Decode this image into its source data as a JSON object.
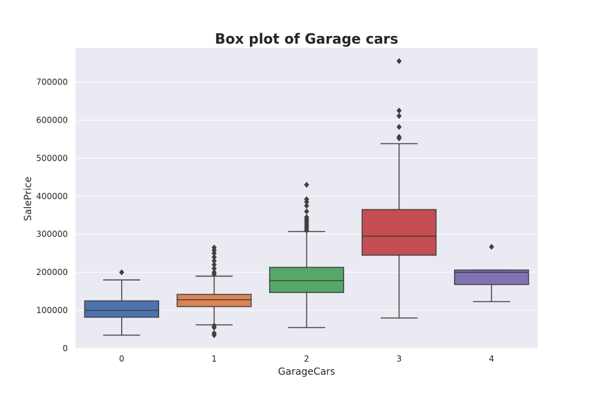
{
  "chart_data": {
    "type": "box",
    "title": "Box plot of Garage cars",
    "xlabel": "GarageCars",
    "ylabel": "SalePrice",
    "ylim": [
      0,
      790000
    ],
    "yticks": [
      0,
      100000,
      200000,
      300000,
      400000,
      500000,
      600000,
      700000
    ],
    "ytick_labels": [
      "0",
      "100000",
      "200000",
      "300000",
      "400000",
      "500000",
      "600000",
      "700000"
    ],
    "grid": true,
    "categories": [
      "0",
      "1",
      "2",
      "3",
      "4"
    ],
    "boxes": [
      {
        "category": "0",
        "color": "#4c72b0",
        "whisker_low": 35000,
        "q1": 82000,
        "median": 100000,
        "q3": 125000,
        "whisker_high": 180000,
        "outliers": [
          200000
        ]
      },
      {
        "category": "1",
        "color": "#dd8452",
        "whisker_low": 62000,
        "q1": 110000,
        "median": 128000,
        "q3": 142000,
        "whisker_high": 190000,
        "outliers": [
          35000,
          40000,
          55000,
          60000,
          195000,
          200000,
          210000,
          220000,
          230000,
          240000,
          250000,
          258000,
          265000
        ]
      },
      {
        "category": "2",
        "color": "#55a868",
        "whisker_low": 55000,
        "q1": 147000,
        "median": 178000,
        "q3": 213000,
        "whisker_high": 307000,
        "outliers": [
          310000,
          315000,
          320000,
          325000,
          330000,
          335000,
          340000,
          345000,
          360000,
          375000,
          385000,
          392000,
          430000
        ]
      },
      {
        "category": "3",
        "color": "#c44e52",
        "whisker_low": 80000,
        "q1": 245000,
        "median": 295000,
        "q3": 365000,
        "whisker_high": 538000,
        "outliers": [
          552000,
          556000,
          582000,
          611000,
          625000,
          755000
        ]
      },
      {
        "category": "4",
        "color": "#8172b3",
        "whisker_low": 123000,
        "q1": 168000,
        "median": 200000,
        "q3": 206000,
        "whisker_high": 206000,
        "outliers": [
          267000
        ]
      }
    ],
    "style": {
      "background": "#eaeaf2",
      "gridline_color": "#ffffff",
      "line_color": "#3f3f3f"
    }
  }
}
